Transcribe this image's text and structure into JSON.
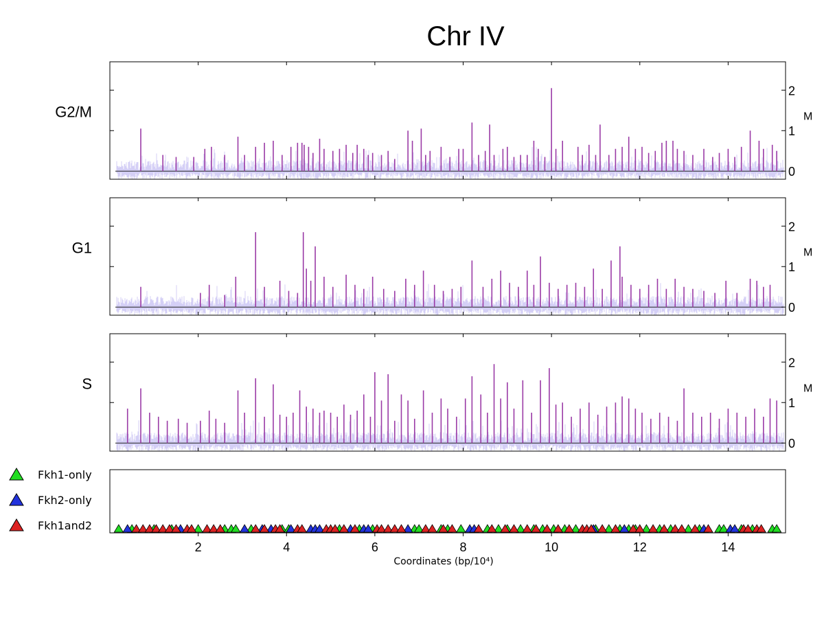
{
  "chart_data": {
    "type": "bar",
    "title": "Chr IV",
    "xlabel": "Coordinates (bp/10⁴)",
    "xlim": [
      0,
      15.3
    ],
    "xticks": [
      2,
      4,
      6,
      8,
      10,
      12,
      14
    ],
    "y_axis_side": "right",
    "grid": false,
    "colors": {
      "signal": "#9a3aa6",
      "background": "#cfcaf5",
      "fkh1_only": "#22dd22",
      "fkh2_only": "#2233dd",
      "fkh1and2": "#dd2222"
    },
    "panels": [
      {
        "name": "G2/M",
        "ylabel": "M",
        "ylim": [
          -0.2,
          2.7
        ],
        "yticks": [
          0,
          1,
          2
        ],
        "peaks": {
          "x": [
            0.7,
            1.2,
            1.5,
            1.9,
            2.15,
            2.3,
            2.6,
            2.9,
            3.05,
            3.3,
            3.5,
            3.7,
            3.9,
            4.1,
            4.25,
            4.35,
            4.4,
            4.5,
            4.6,
            4.75,
            4.85,
            5.05,
            5.2,
            5.35,
            5.5,
            5.6,
            5.75,
            5.85,
            5.95,
            6.15,
            6.3,
            6.45,
            6.75,
            6.85,
            7.05,
            7.15,
            7.25,
            7.5,
            7.7,
            7.9,
            8.0,
            8.2,
            8.35,
            8.5,
            8.6,
            8.7,
            8.9,
            9.0,
            9.15,
            9.3,
            9.45,
            9.6,
            9.7,
            9.85,
            10.0,
            10.1,
            10.25,
            10.6,
            10.7,
            10.85,
            11.0,
            11.1,
            11.3,
            11.45,
            11.6,
            11.75,
            11.9,
            12.05,
            12.2,
            12.35,
            12.5,
            12.6,
            12.75,
            12.85,
            13.0,
            13.2,
            13.45,
            13.65,
            13.8,
            14.0,
            14.15,
            14.3,
            14.5,
            14.7,
            14.8,
            15.0,
            15.1
          ],
          "y": [
            1.05,
            0.4,
            0.35,
            0.35,
            0.55,
            0.6,
            0.4,
            0.85,
            0.4,
            0.6,
            0.7,
            0.75,
            0.4,
            0.6,
            0.7,
            0.7,
            0.65,
            0.6,
            0.45,
            0.8,
            0.55,
            0.5,
            0.55,
            0.65,
            0.45,
            0.65,
            0.55,
            0.4,
            0.45,
            0.4,
            0.5,
            0.3,
            1.0,
            0.75,
            1.05,
            0.4,
            0.5,
            0.6,
            0.35,
            0.55,
            0.55,
            1.2,
            0.4,
            0.5,
            1.15,
            0.4,
            0.55,
            0.6,
            0.35,
            0.4,
            0.4,
            0.75,
            0.55,
            0.35,
            2.05,
            0.55,
            0.75,
            0.6,
            0.4,
            0.65,
            0.4,
            1.15,
            0.4,
            0.55,
            0.6,
            0.85,
            0.55,
            0.6,
            0.45,
            0.5,
            0.7,
            0.75,
            0.75,
            0.55,
            0.5,
            0.4,
            0.55,
            0.35,
            0.45,
            0.55,
            0.35,
            0.6,
            1.0,
            0.75,
            0.55,
            0.65,
            0.5
          ]
        }
      },
      {
        "name": "G1",
        "ylabel": "M",
        "ylim": [
          -0.2,
          2.7
        ],
        "yticks": [
          0,
          1,
          2
        ],
        "peaks": {
          "x": [
            0.7,
            2.05,
            2.25,
            2.6,
            2.85,
            3.3,
            3.5,
            3.85,
            4.05,
            4.25,
            4.38,
            4.45,
            4.55,
            4.65,
            4.85,
            5.05,
            5.35,
            5.55,
            5.75,
            5.95,
            6.2,
            6.45,
            6.7,
            6.9,
            7.1,
            7.35,
            7.55,
            7.75,
            7.95,
            8.2,
            8.45,
            8.65,
            8.85,
            9.05,
            9.25,
            9.45,
            9.6,
            9.75,
            9.95,
            10.15,
            10.35,
            10.55,
            10.75,
            10.95,
            11.15,
            11.35,
            11.55,
            11.6,
            11.8,
            12.0,
            12.2,
            12.4,
            12.6,
            12.8,
            13.0,
            13.2,
            13.45,
            13.7,
            13.95,
            14.2,
            14.5,
            14.65,
            14.8,
            14.95
          ],
          "y": [
            0.5,
            0.35,
            0.55,
            0.3,
            0.75,
            1.85,
            0.5,
            0.65,
            0.4,
            0.35,
            1.85,
            0.95,
            0.65,
            1.5,
            0.75,
            0.5,
            0.8,
            0.55,
            0.45,
            0.75,
            0.45,
            0.4,
            0.7,
            0.55,
            0.9,
            0.55,
            0.4,
            0.45,
            0.5,
            1.15,
            0.5,
            0.7,
            0.9,
            0.6,
            0.5,
            0.9,
            0.55,
            1.25,
            0.6,
            0.45,
            0.55,
            0.6,
            0.5,
            0.95,
            0.45,
            1.15,
            1.5,
            0.75,
            0.55,
            0.45,
            0.55,
            0.7,
            0.45,
            0.7,
            0.5,
            0.45,
            0.4,
            0.35,
            0.65,
            0.35,
            0.7,
            0.65,
            0.5,
            0.55
          ]
        }
      },
      {
        "name": "S",
        "ylabel": "M",
        "ylim": [
          -0.2,
          2.7
        ],
        "yticks": [
          0,
          1,
          2
        ],
        "peaks": {
          "x": [
            0.4,
            0.7,
            0.9,
            1.1,
            1.3,
            1.55,
            1.75,
            2.05,
            2.25,
            2.4,
            2.6,
            2.9,
            3.05,
            3.3,
            3.5,
            3.7,
            3.85,
            4.0,
            4.15,
            4.3,
            4.45,
            4.6,
            4.75,
            4.85,
            5.0,
            5.15,
            5.3,
            5.45,
            5.6,
            5.75,
            5.9,
            6.0,
            6.15,
            6.3,
            6.45,
            6.6,
            6.75,
            6.9,
            7.1,
            7.3,
            7.5,
            7.65,
            7.85,
            8.05,
            8.2,
            8.4,
            8.55,
            8.7,
            8.85,
            9.0,
            9.15,
            9.35,
            9.55,
            9.75,
            9.95,
            10.1,
            10.25,
            10.45,
            10.65,
            10.85,
            11.05,
            11.25,
            11.45,
            11.6,
            11.75,
            11.9,
            12.05,
            12.25,
            12.45,
            12.65,
            12.85,
            13.0,
            13.2,
            13.4,
            13.6,
            13.8,
            14.0,
            14.2,
            14.4,
            14.6,
            14.8,
            14.95,
            15.1
          ],
          "y": [
            0.85,
            1.35,
            0.75,
            0.65,
            0.55,
            0.6,
            0.5,
            0.55,
            0.8,
            0.6,
            0.5,
            1.3,
            0.75,
            1.6,
            0.65,
            1.45,
            0.7,
            0.65,
            0.75,
            1.3,
            0.9,
            0.85,
            0.75,
            0.8,
            0.75,
            0.65,
            0.95,
            0.7,
            0.8,
            1.2,
            0.65,
            1.75,
            1.05,
            1.7,
            0.55,
            1.2,
            1.05,
            0.6,
            1.3,
            0.75,
            1.1,
            0.85,
            0.65,
            1.1,
            1.65,
            1.2,
            0.75,
            1.95,
            1.1,
            1.5,
            0.85,
            1.55,
            0.75,
            1.55,
            1.85,
            0.95,
            1.0,
            0.65,
            0.85,
            1.0,
            0.7,
            0.9,
            1.0,
            1.15,
            1.1,
            0.85,
            0.75,
            0.6,
            0.75,
            0.65,
            0.55,
            1.35,
            0.75,
            0.65,
            0.75,
            0.6,
            0.85,
            0.75,
            0.65,
            0.85,
            0.65,
            1.1,
            1.05
          ]
        }
      }
    ],
    "legend": {
      "placement": "left-of-bottom-panel",
      "entries": [
        {
          "label": "Fkh1-only",
          "color": "#22dd22"
        },
        {
          "label": "Fkh2-only",
          "color": "#2233dd"
        },
        {
          "label": "Fkh1and2",
          "color": "#dd2222"
        }
      ]
    },
    "sites": {
      "Fkh1-only": [
        0.2,
        0.5,
        1.0,
        1.4,
        2.0,
        2.6,
        2.75,
        2.85,
        3.2,
        3.9,
        4.05,
        5.2,
        5.65,
        5.95,
        6.9,
        7.0,
        7.5,
        7.65,
        7.95,
        8.55,
        8.8,
        9.0,
        9.3,
        9.6,
        9.8,
        10.05,
        10.3,
        10.55,
        11.0,
        11.3,
        11.55,
        11.75,
        11.9,
        12.15,
        12.45,
        12.7,
        13.1,
        13.35,
        13.8,
        13.9,
        14.3,
        14.55,
        15.0,
        15.1
      ],
      "Fkh2-only": [
        0.4,
        1.6,
        3.05,
        3.45,
        3.65,
        4.1,
        4.55,
        4.65,
        4.75,
        5.45,
        5.75,
        5.85,
        6.75,
        8.15,
        8.25,
        10.95,
        11.65,
        13.45,
        14.05,
        14.15
      ],
      "Fkh1and2": [
        0.6,
        0.75,
        0.9,
        1.05,
        1.2,
        1.35,
        1.5,
        1.75,
        1.85,
        2.2,
        2.35,
        2.5,
        3.3,
        3.5,
        3.75,
        3.85,
        4.25,
        4.35,
        4.9,
        5.0,
        5.1,
        5.3,
        5.55,
        6.05,
        6.15,
        6.3,
        6.45,
        6.6,
        7.15,
        7.3,
        7.55,
        7.75,
        8.35,
        8.65,
        8.95,
        9.15,
        9.45,
        9.65,
        9.9,
        10.15,
        10.4,
        10.7,
        10.8,
        10.9,
        11.15,
        11.45,
        11.85,
        12.0,
        12.3,
        12.55,
        12.8,
        12.95,
        13.25,
        13.55,
        14.35,
        14.45,
        14.65,
        14.75
      ]
    }
  }
}
